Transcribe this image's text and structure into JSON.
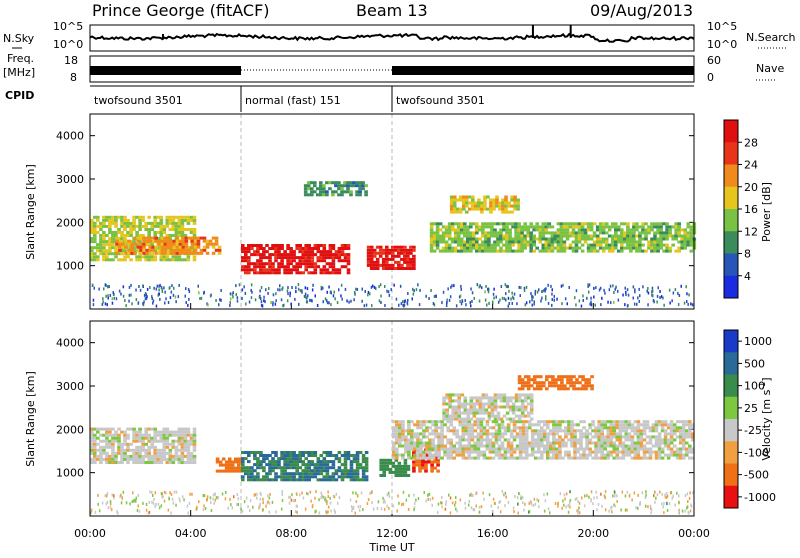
{
  "header": {
    "station": "Prince George (fitACF)",
    "beam": "Beam 13",
    "date": "09/Aug/2013"
  },
  "ancillary": {
    "nsky_label": "N.Sky",
    "nsearch_label": "N.Search",
    "freq_label_1": "Freq.",
    "freq_label_2": "[MHz]",
    "nave_label": "Nave",
    "cpid_label": "CPID",
    "noise_left_ticks": [
      "10^5",
      "10^0"
    ],
    "noise_right_ticks": [
      "10^5",
      "10^0"
    ],
    "freq_left_ticks": [
      "18",
      "8"
    ],
    "freq_right_ticks": [
      "60",
      "0"
    ],
    "cpid_segments": [
      {
        "label": "twofsound 3501",
        "start_h": 0,
        "end_h": 6
      },
      {
        "label": "normal (fast) 151",
        "start_h": 6,
        "end_h": 12
      },
      {
        "label": "twofsound 3501",
        "start_h": 12,
        "end_h": 24
      }
    ]
  },
  "chart_data": [
    {
      "type": "heatmap",
      "name": "power",
      "ylabel": "Slant Range [km]",
      "xlim_hours": [
        0,
        24
      ],
      "ylim_km": [
        0,
        4500
      ],
      "y_ticks": [
        "1000",
        "2000",
        "3000",
        "4000"
      ],
      "colorbar_label": "Power [dB]",
      "colorbar_ticks": [
        "4",
        "8",
        "12",
        "16",
        "20",
        "24",
        "28"
      ],
      "colorbar_colors": [
        "#1a2ce0",
        "#2856b8",
        "#3a8c5c",
        "#7ac243",
        "#e6c61e",
        "#f08a1a",
        "#e8341a",
        "#e01010"
      ],
      "bands": [
        {
          "t0": 0.0,
          "t1": 4.2,
          "r0": 1100,
          "r1": 2100,
          "level": 16
        },
        {
          "t0": 1.0,
          "t1": 5.2,
          "r0": 1250,
          "r1": 1650,
          "level": 22
        },
        {
          "t0": 6.0,
          "t1": 10.2,
          "r0": 800,
          "r1": 1500,
          "level": 30
        },
        {
          "t0": 11.0,
          "t1": 12.8,
          "r0": 900,
          "r1": 1400,
          "level": 30
        },
        {
          "t0": 13.5,
          "t1": 24.0,
          "r0": 1300,
          "r1": 2000,
          "level": 14
        },
        {
          "t0": 14.3,
          "t1": 17.0,
          "r0": 2200,
          "r1": 2600,
          "level": 18
        },
        {
          "t0": 8.5,
          "t1": 11.0,
          "r0": 2600,
          "r1": 2900,
          "level": 10
        }
      ]
    },
    {
      "type": "heatmap",
      "name": "velocity",
      "ylabel": "Slant Range [km]",
      "xlabel": "Time UT",
      "xlim_hours": [
        0,
        24
      ],
      "ylim_km": [
        0,
        4500
      ],
      "y_ticks": [
        "1000",
        "2000",
        "3000",
        "4000"
      ],
      "x_ticks": [
        "00:00",
        "04:00",
        "08:00",
        "12:00",
        "16:00",
        "20:00",
        "00:00"
      ],
      "colorbar_label": "Velocity [m s^-1]",
      "colorbar_ticks": [
        "1000",
        "500",
        "100",
        "25",
        "-25",
        "-100",
        "-500",
        "-1000"
      ],
      "colorbar_colors": [
        "#1a3ac8",
        "#2a6a98",
        "#3a8c4c",
        "#7cc840",
        "#c8c8c8",
        "#f0a040",
        "#f07018",
        "#e81010"
      ],
      "bands": [
        {
          "t0": 0.0,
          "t1": 4.2,
          "r0": 1200,
          "r1": 2000,
          "v": 0
        },
        {
          "t0": 5.0,
          "t1": 6.0,
          "r0": 1000,
          "r1": 1350,
          "v": -200
        },
        {
          "t0": 6.0,
          "t1": 11.0,
          "r0": 800,
          "r1": 1500,
          "v": 300
        },
        {
          "t0": 11.5,
          "t1": 12.6,
          "r0": 900,
          "r1": 1300,
          "v": 200
        },
        {
          "t0": 12.8,
          "t1": 13.8,
          "r0": 1000,
          "r1": 1500,
          "v": -300
        },
        {
          "t0": 12.0,
          "t1": 24.0,
          "r0": 1300,
          "r1": 2200,
          "v": 0
        },
        {
          "t0": 14.0,
          "t1": 17.5,
          "r0": 2200,
          "r1": 2800,
          "v": 0
        },
        {
          "t0": 17.0,
          "t1": 20.0,
          "r0": 2900,
          "r1": 3200,
          "v": -200
        }
      ]
    }
  ]
}
